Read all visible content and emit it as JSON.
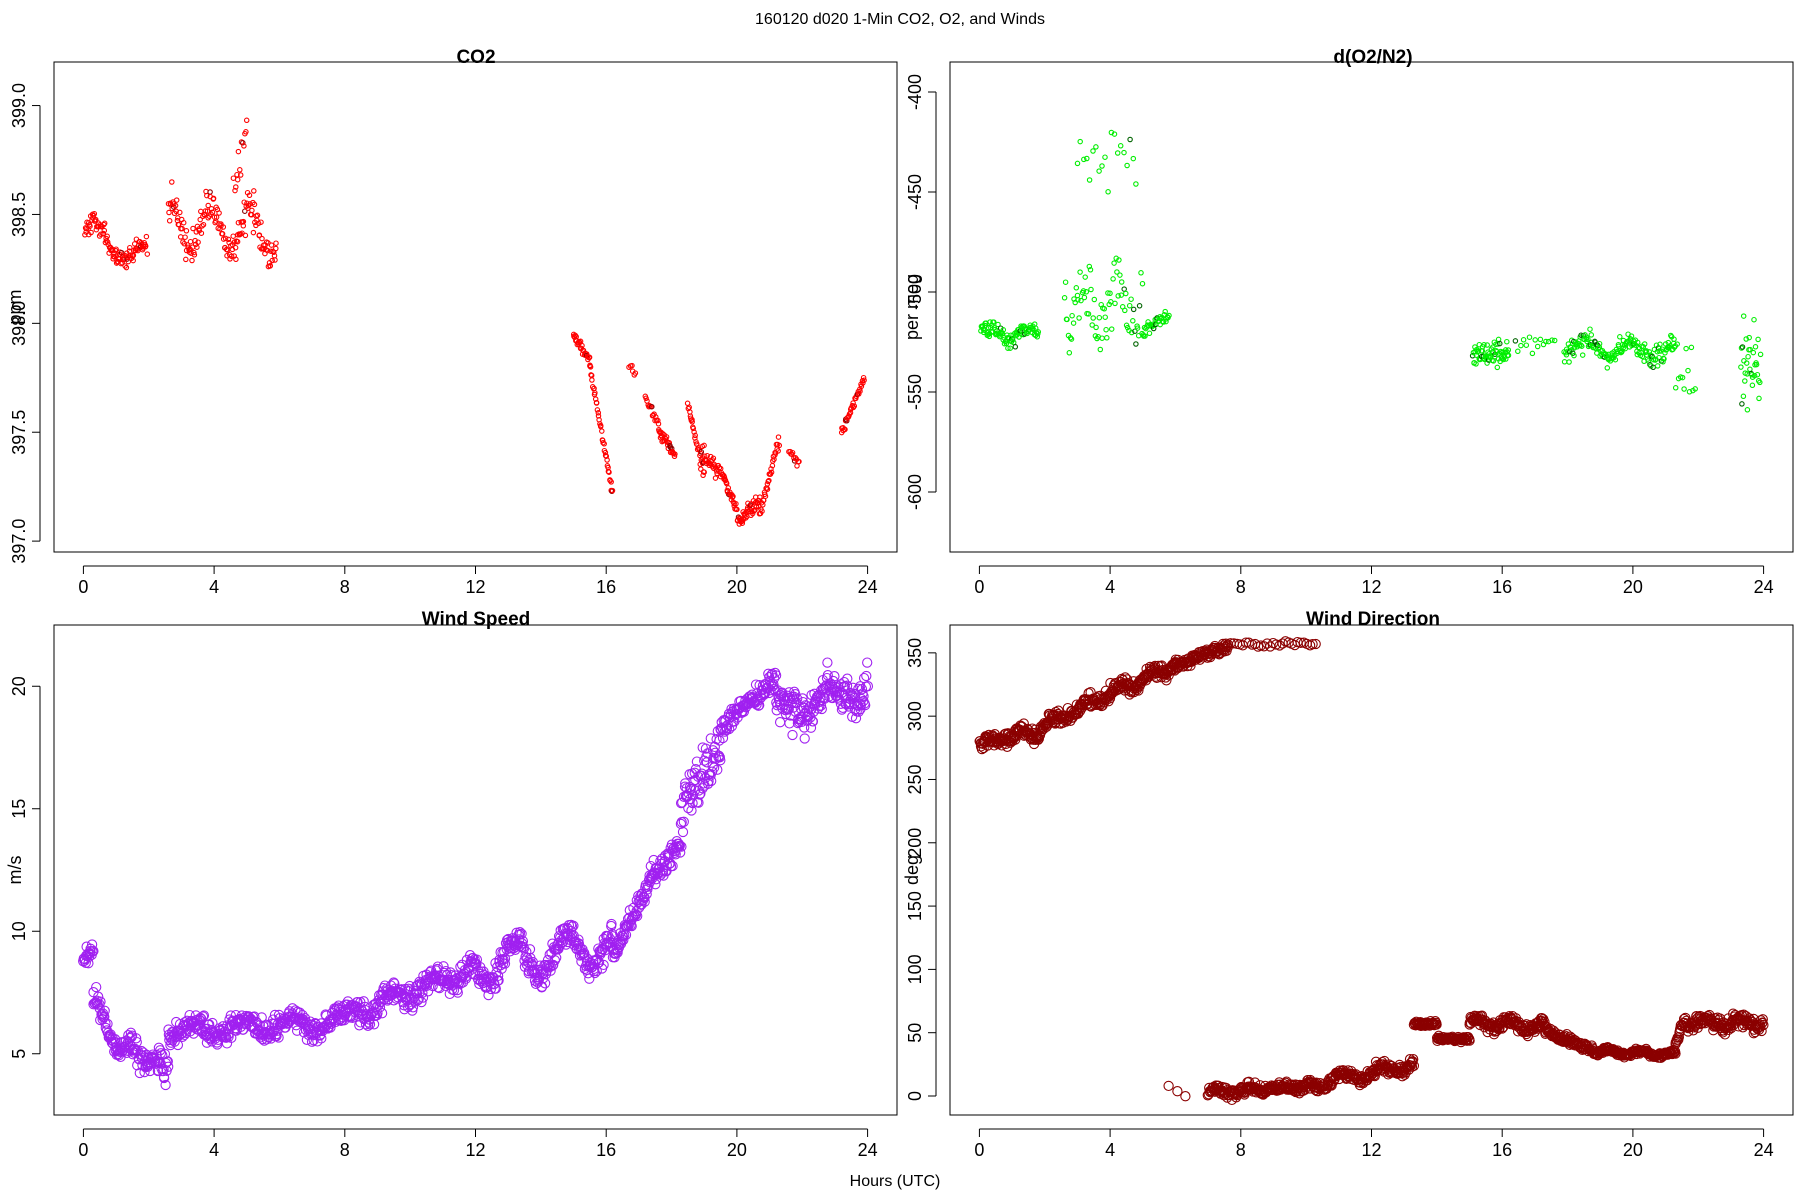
{
  "figure": {
    "title": "160120   d020   1-Min CO2, O2, and Winds",
    "xlabel": "Hours (UTC)"
  },
  "colors": {
    "co2": "#ff0000",
    "o2": "#00ee00",
    "o2_flagged": "#006400",
    "co2_flagged": "#8b0000",
    "wind_speed": "#a020f0",
    "wind_direction": "#8b0000"
  },
  "chart_data": [
    {
      "type": "scatter",
      "title": "CO2",
      "ylabel": "ppm",
      "xlim": [
        -0.9,
        24.9
      ],
      "ylim": [
        396.95,
        399.2
      ],
      "xticks": [
        "0",
        "4",
        "8",
        "12",
        "16",
        "20",
        "24"
      ],
      "yticks": [
        "397.0",
        "397.5",
        "398.0",
        "398.5",
        "399.0"
      ],
      "series": [
        {
          "segments": [
            {
              "x0": 0.05,
              "x1": 1.95,
              "y0": 398.42,
              "y1": 398.3,
              "n": 110,
              "noise": 0.06,
              "wave": 0.06,
              "per": 1.5
            },
            {
              "x0": 2.6,
              "x1": 5.9,
              "y0": 398.45,
              "y1": 398.42,
              "n": 170,
              "noise": 0.12,
              "wave": 0.1,
              "per": 1.2
            },
            {
              "x0": 4.6,
              "x1": 5.0,
              "y0": 398.6,
              "y1": 398.9,
              "n": 14,
              "noise": 0.15,
              "wave": 0,
              "per": 1
            },
            {
              "x0": 15.0,
              "x1": 15.5,
              "y0": 397.95,
              "y1": 397.82,
              "n": 30,
              "noise": 0.04,
              "wave": 0,
              "per": 1
            },
            {
              "x0": 15.5,
              "x1": 16.2,
              "y0": 397.8,
              "y1": 397.22,
              "n": 40,
              "noise": 0.03,
              "wave": 0,
              "per": 1
            },
            {
              "x0": 16.7,
              "x1": 16.9,
              "y0": 397.8,
              "y1": 397.78,
              "n": 6,
              "noise": 0.05,
              "wave": 0,
              "per": 1
            },
            {
              "x0": 17.2,
              "x1": 17.6,
              "y0": 397.65,
              "y1": 397.55,
              "n": 16,
              "noise": 0.04,
              "wave": 0,
              "per": 1
            },
            {
              "x0": 17.6,
              "x1": 18.1,
              "y0": 397.5,
              "y1": 397.4,
              "n": 30,
              "noise": 0.04,
              "wave": 0,
              "per": 1
            },
            {
              "x0": 18.5,
              "x1": 19.0,
              "y0": 397.62,
              "y1": 397.3,
              "n": 30,
              "noise": 0.04,
              "wave": 0,
              "per": 1
            },
            {
              "x0": 18.9,
              "x1": 19.6,
              "y0": 397.4,
              "y1": 397.3,
              "n": 40,
              "noise": 0.06,
              "wave": 0,
              "per": 1
            },
            {
              "x0": 19.6,
              "x1": 20.1,
              "y0": 397.3,
              "y1": 397.08,
              "n": 30,
              "noise": 0.05,
              "wave": 0,
              "per": 1
            },
            {
              "x0": 20.1,
              "x1": 20.7,
              "y0": 397.1,
              "y1": 397.18,
              "n": 40,
              "noise": 0.06,
              "wave": 0,
              "per": 1
            },
            {
              "x0": 20.7,
              "x1": 21.3,
              "y0": 397.12,
              "y1": 397.47,
              "n": 35,
              "noise": 0.04,
              "wave": 0,
              "per": 1
            },
            {
              "x0": 21.6,
              "x1": 21.9,
              "y0": 397.42,
              "y1": 397.35,
              "n": 12,
              "noise": 0.03,
              "wave": 0,
              "per": 1
            },
            {
              "x0": 23.2,
              "x1": 23.9,
              "y0": 397.5,
              "y1": 397.75,
              "n": 35,
              "noise": 0.03,
              "wave": 0,
              "per": 1
            }
          ]
        }
      ]
    },
    {
      "type": "scatter",
      "title": "d(O2/N2)",
      "ylabel": "per meg",
      "xlim": [
        -0.9,
        24.9
      ],
      "ylim": [
        -630,
        -385
      ],
      "xticks": [
        "0",
        "4",
        "8",
        "12",
        "16",
        "20",
        "24"
      ],
      "yticks": [
        "-400",
        "-450",
        "-500",
        "-550",
        "-600"
      ],
      "series": [
        {
          "segments": [
            {
              "x0": 0.05,
              "x1": 1.8,
              "y0": -520,
              "y1": -522,
              "n": 100,
              "noise": 6,
              "wave": 3,
              "per": 1.2
            },
            {
              "x0": 2.6,
              "x1": 5.0,
              "y0": -505,
              "y1": -505,
              "n": 80,
              "noise": 25,
              "wave": 10,
              "per": 1
            },
            {
              "x0": 3.0,
              "x1": 4.8,
              "y0": -440,
              "y1": -430,
              "n": 20,
              "noise": 25,
              "wave": 0,
              "per": 1
            },
            {
              "x0": 5.0,
              "x1": 5.8,
              "y0": -520,
              "y1": -512,
              "n": 35,
              "noise": 5,
              "wave": 0,
              "per": 1
            },
            {
              "x0": 15.1,
              "x1": 16.2,
              "y0": -532,
              "y1": -530,
              "n": 70,
              "noise": 9,
              "wave": 0,
              "per": 1
            },
            {
              "x0": 16.4,
              "x1": 17.6,
              "y0": -525,
              "y1": -525,
              "n": 15,
              "noise": 8,
              "wave": 0,
              "per": 1
            },
            {
              "x0": 17.9,
              "x1": 21.3,
              "y0": -528,
              "y1": -530,
              "n": 170,
              "noise": 8,
              "wave": 4,
              "per": 1.4
            },
            {
              "x0": 21.3,
              "x1": 21.9,
              "y0": -540,
              "y1": -540,
              "n": 12,
              "noise": 20,
              "wave": 0,
              "per": 1
            },
            {
              "x0": 23.3,
              "x1": 23.9,
              "y0": -535,
              "y1": -540,
              "n": 35,
              "noise": 30,
              "wave": 0,
              "per": 1
            }
          ]
        }
      ]
    },
    {
      "type": "scatter",
      "title": "Wind Speed",
      "ylabel": "m/s",
      "xlim": [
        -0.9,
        24.9
      ],
      "ylim": [
        2.5,
        22.5
      ],
      "xticks": [
        "0",
        "4",
        "8",
        "12",
        "16",
        "20",
        "24"
      ],
      "yticks": [
        "5",
        "10",
        "15",
        "20"
      ],
      "series": [
        {
          "segments": [
            {
              "x0": 0.0,
              "x1": 0.3,
              "y0": 8.8,
              "y1": 9.2,
              "n": 18,
              "noise": 0.5,
              "wave": 0,
              "per": 1
            },
            {
              "x0": 0.3,
              "x1": 1.0,
              "y0": 7.5,
              "y1": 5.3,
              "n": 40,
              "noise": 0.7,
              "wave": 0,
              "per": 1
            },
            {
              "x0": 1.0,
              "x1": 1.5,
              "y0": 5.0,
              "y1": 5.5,
              "n": 30,
              "noise": 0.6,
              "wave": 0,
              "per": 1
            },
            {
              "x0": 1.5,
              "x1": 2.6,
              "y0": 5.0,
              "y1": 4.4,
              "n": 65,
              "noise": 0.9,
              "wave": 0,
              "per": 1
            },
            {
              "x0": 2.6,
              "x1": 8.0,
              "y0": 5.9,
              "y1": 6.3,
              "n": 320,
              "noise": 0.7,
              "wave": 0.3,
              "per": 1.5
            },
            {
              "x0": 8.0,
              "x1": 12.0,
              "y0": 6.5,
              "y1": 8.5,
              "n": 240,
              "noise": 0.7,
              "wave": 0.3,
              "per": 1.3
            },
            {
              "x0": 12.0,
              "x1": 16.2,
              "y0": 8.5,
              "y1": 9.5,
              "n": 250,
              "noise": 0.8,
              "wave": 0.8,
              "per": 1.6
            },
            {
              "x0": 16.2,
              "x1": 17.5,
              "y0": 9.0,
              "y1": 12.5,
              "n": 80,
              "noise": 0.7,
              "wave": 0,
              "per": 1
            },
            {
              "x0": 17.5,
              "x1": 18.3,
              "y0": 12.0,
              "y1": 13.8,
              "n": 50,
              "noise": 0.8,
              "wave": 0,
              "per": 1
            },
            {
              "x0": 18.3,
              "x1": 19.5,
              "y0": 15.0,
              "y1": 17.5,
              "n": 70,
              "noise": 1.5,
              "wave": 0,
              "per": 1
            },
            {
              "x0": 19.5,
              "x1": 21.2,
              "y0": 18.3,
              "y1": 20.3,
              "n": 100,
              "noise": 0.7,
              "wave": 0,
              "per": 1
            },
            {
              "x0": 21.2,
              "x1": 24.0,
              "y0": 18.8,
              "y1": 20.0,
              "n": 170,
              "noise": 1.2,
              "wave": 0.5,
              "per": 1.5
            }
          ]
        }
      ]
    },
    {
      "type": "scatter",
      "title": "Wind Direction",
      "ylabel": "deg",
      "xlim": [
        -0.9,
        24.9
      ],
      "ylim": [
        -15,
        372
      ],
      "xticks": [
        "0",
        "4",
        "8",
        "12",
        "16",
        "20",
        "24"
      ],
      "yticks": [
        "0",
        "50",
        "100",
        "150",
        "200",
        "250",
        "300",
        "350"
      ],
      "series": [
        {
          "segments": [
            {
              "x0": 0.0,
              "x1": 1.8,
              "y0": 278,
              "y1": 288,
              "n": 110,
              "noise": 8,
              "wave": 3,
              "per": 1
            },
            {
              "x0": 1.8,
              "x1": 4.0,
              "y0": 290,
              "y1": 318,
              "n": 130,
              "noise": 8,
              "wave": 3,
              "per": 1
            },
            {
              "x0": 4.0,
              "x1": 6.0,
              "y0": 318,
              "y1": 342,
              "n": 120,
              "noise": 9,
              "wave": 4,
              "per": 1
            },
            {
              "x0": 6.0,
              "x1": 7.6,
              "y0": 340,
              "y1": 355,
              "n": 95,
              "noise": 6,
              "wave": 0,
              "per": 1
            },
            {
              "x0": 7.6,
              "x1": 10.3,
              "y0": 357,
              "y1": 357,
              "n": 30,
              "noise": 3,
              "wave": 0,
              "per": 1
            },
            {
              "x0": 5.8,
              "x1": 6.3,
              "y0": 8,
              "y1": 0,
              "n": 3,
              "noise": 1,
              "wave": 0,
              "per": 1
            },
            {
              "x0": 7.0,
              "x1": 10.0,
              "y0": 3,
              "y1": 8,
              "n": 180,
              "noise": 6,
              "wave": 2,
              "per": 1
            },
            {
              "x0": 10.0,
              "x1": 13.3,
              "y0": 8,
              "y1": 25,
              "n": 200,
              "noise": 7,
              "wave": 4,
              "per": 1.2
            },
            {
              "x0": 13.3,
              "x1": 14.0,
              "y0": 57,
              "y1": 57,
              "n": 40,
              "noise": 3,
              "wave": 0,
              "per": 1
            },
            {
              "x0": 14.0,
              "x1": 15.0,
              "y0": 45,
              "y1": 45,
              "n": 60,
              "noise": 3,
              "wave": 0,
              "per": 1
            },
            {
              "x0": 15.0,
              "x1": 17.3,
              "y0": 58,
              "y1": 55,
              "n": 140,
              "noise": 7,
              "wave": 4,
              "per": 1
            },
            {
              "x0": 17.3,
              "x1": 18.8,
              "y0": 52,
              "y1": 35,
              "n": 90,
              "noise": 6,
              "wave": 0,
              "per": 1
            },
            {
              "x0": 18.8,
              "x1": 21.3,
              "y0": 35,
              "y1": 33,
              "n": 150,
              "noise": 3,
              "wave": 2,
              "per": 1
            },
            {
              "x0": 21.3,
              "x1": 21.6,
              "y0": 40,
              "y1": 62,
              "n": 18,
              "noise": 5,
              "wave": 0,
              "per": 1
            },
            {
              "x0": 21.6,
              "x1": 24.0,
              "y0": 58,
              "y1": 58,
              "n": 145,
              "noise": 8,
              "wave": 3,
              "per": 1
            }
          ]
        }
      ]
    }
  ]
}
